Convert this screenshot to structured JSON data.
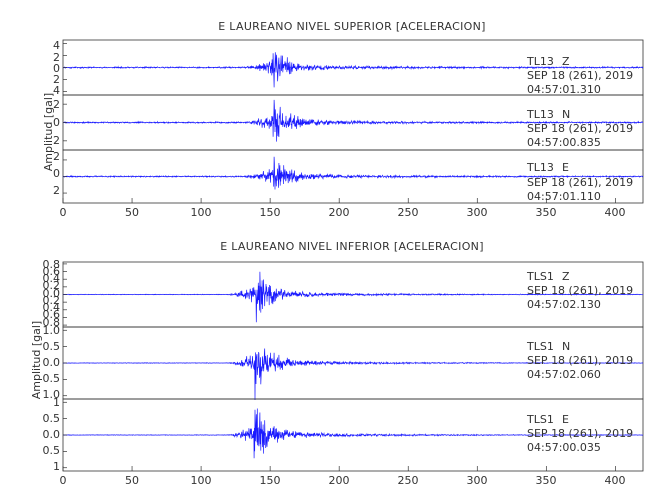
{
  "figure": {
    "top_panel": {
      "title": "E LAUREANO NIVEL SUPERIOR [ACELERACION]",
      "ylabel": "Amplitud [gal]",
      "xlim": [
        0,
        420
      ],
      "xticks": [
        "0",
        "50",
        "100",
        "150",
        "200",
        "250",
        "300",
        "350",
        "400"
      ],
      "traces": [
        {
          "station": "TL13",
          "component": "Z",
          "date": "SEP 18 (261), 2019",
          "time": "04:57:01.310",
          "ylim": [
            -4.6,
            4.6
          ],
          "yticks": [
            "4",
            "2",
            "0",
            "2",
            "4"
          ],
          "yvals": [
            4,
            2,
            0,
            -2,
            -4
          ]
        },
        {
          "station": "TL13",
          "component": "N",
          "date": "SEP 18 (261), 2019",
          "time": "04:57:00.835",
          "ylim": [
            -3.0,
            3.0
          ],
          "yticks": [
            "2",
            "0",
            "2"
          ],
          "yvals": [
            2,
            0,
            -2
          ]
        },
        {
          "station": "TL13",
          "component": "E",
          "date": "SEP 18 (261), 2019",
          "time": "04:57:01.110",
          "ylim": [
            -3.2,
            3.2
          ],
          "yticks": [
            "2",
            "0",
            "2"
          ],
          "yvals": [
            2,
            0,
            -2
          ]
        }
      ]
    },
    "bottom_panel": {
      "title": "E LAUREANO NIVEL INFERIOR [ACELERACION]",
      "ylabel": "Amplitud [gal]",
      "xlim": [
        0,
        420
      ],
      "xticks": [
        "0",
        "50",
        "100",
        "150",
        "200",
        "250",
        "300",
        "350",
        "400"
      ],
      "traces": [
        {
          "station": "TLS1",
          "component": "Z",
          "date": "SEP 18 (261), 2019",
          "time": "04:57:02.130",
          "ylim": [
            -0.85,
            0.85
          ],
          "yticks": [
            "0.8",
            "0.6",
            "0.4",
            "0.2",
            "0.0",
            "0.2",
            "0.4",
            "0.6",
            "0.8"
          ],
          "yvals": [
            0.8,
            0.6,
            0.4,
            0.2,
            0,
            -0.2,
            -0.4,
            -0.6,
            -0.8
          ]
        },
        {
          "station": "TLS1",
          "component": "N",
          "date": "SEP 18 (261), 2019",
          "time": "04:57:02.060",
          "ylim": [
            -1.1,
            1.1
          ],
          "yticks": [
            "1.0",
            "0.5",
            "0.0",
            "0.5",
            "1.0"
          ],
          "yvals": [
            1.0,
            0.5,
            0,
            -0.5,
            -1.0
          ]
        },
        {
          "station": "TLS1",
          "component": "E",
          "date": "SEP 18 (261), 2019",
          "time": "04:57:00.035",
          "ylim": [
            -1.1,
            1.1
          ],
          "yticks": [
            "1",
            "0.5",
            "0.0",
            "0.5",
            "1"
          ],
          "yvals": [
            1.0,
            0.5,
            0,
            -0.5,
            -1.0
          ]
        }
      ]
    }
  },
  "chart_data": [
    {
      "type": "line",
      "title": "E LAUREANO NIVEL SUPERIOR [ACELERACION]",
      "ylabel": "Amplitud [gal]",
      "xlim": [
        0,
        420
      ],
      "series": [
        {
          "name": "TL13 Z",
          "onset_s": 130,
          "peak_s": 151,
          "peak_amplitude": 4.3
        },
        {
          "name": "TL13 N",
          "onset_s": 130,
          "peak_s": 152,
          "peak_amplitude": 2.8
        },
        {
          "name": "TL13 E",
          "onset_s": 130,
          "peak_s": 152,
          "peak_amplitude": 3.0
        }
      ],
      "grid": false,
      "legend": "none"
    },
    {
      "type": "line",
      "title": "E LAUREANO NIVEL INFERIOR [ACELERACION]",
      "ylabel": "Amplitud [gal]",
      "xlim": [
        0,
        420
      ],
      "series": [
        {
          "name": "TLS1 Z",
          "onset_s": 118,
          "peak_s": 140,
          "peak_amplitude": 0.8
        },
        {
          "name": "TLS1 N",
          "onset_s": 120,
          "peak_s": 139,
          "peak_amplitude": 1.05
        },
        {
          "name": "TLS1 E",
          "onset_s": 120,
          "peak_s": 138,
          "peak_amplitude": 1.05
        }
      ],
      "grid": false,
      "legend": "none"
    }
  ]
}
